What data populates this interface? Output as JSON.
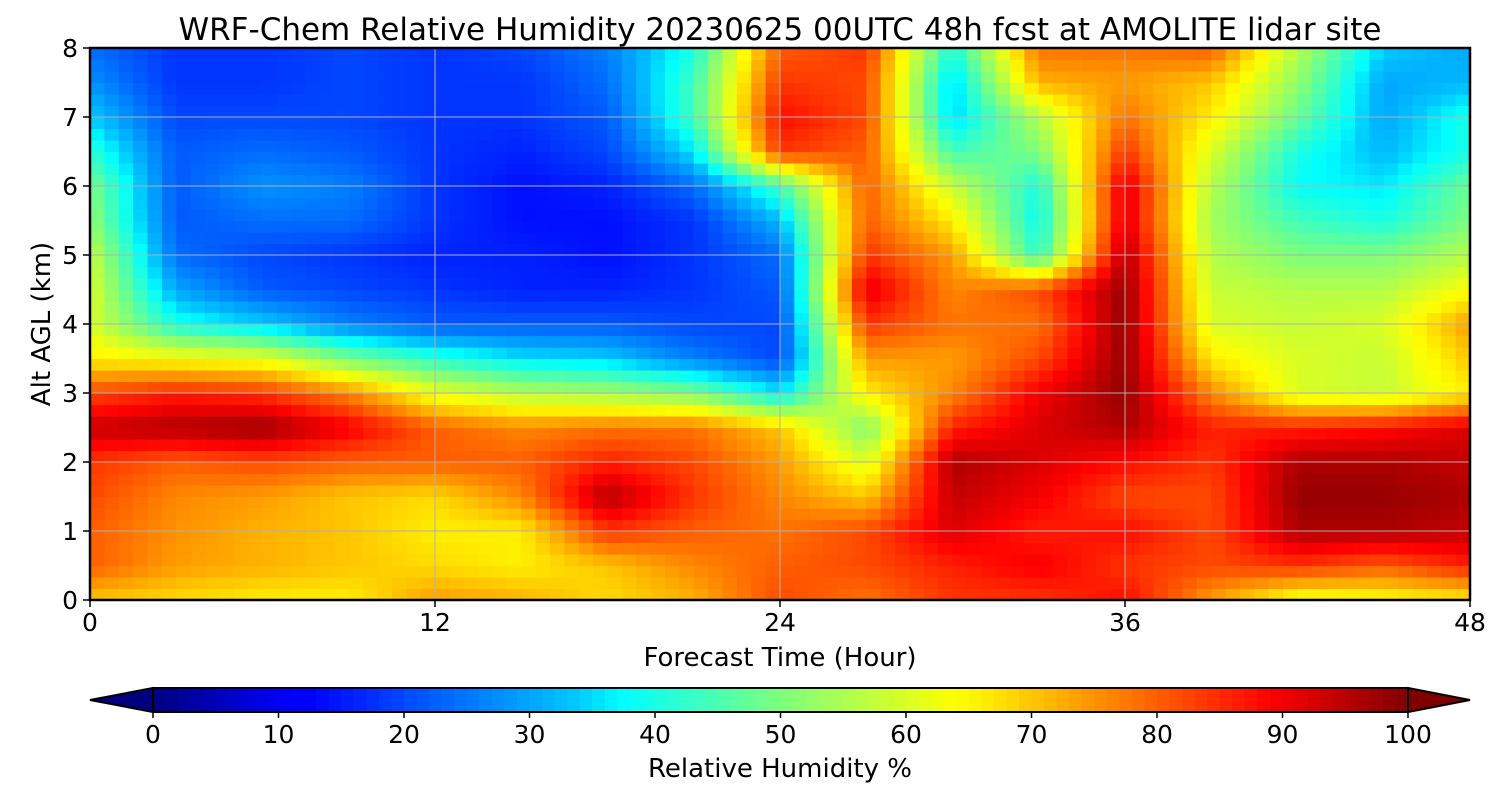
{
  "chart_data": {
    "type": "heatmap",
    "title": "WRF-Chem Relative Humidity 20230625 00UTC 48h fcst at AMOLITE lidar site",
    "xlabel": "Forecast Time (Hour)",
    "ylabel": "Alt AGL (km)",
    "xlim": [
      0,
      48
    ],
    "ylim": [
      0,
      8
    ],
    "xticks": [
      0,
      12,
      24,
      36,
      48
    ],
    "yticks": [
      0,
      1,
      2,
      3,
      4,
      5,
      6,
      7,
      8
    ],
    "grid": true,
    "colormap": "jet",
    "colorbar": {
      "label": "Relative Humidity %",
      "range": [
        0,
        100
      ],
      "ticks": [
        0,
        10,
        20,
        30,
        40,
        50,
        60,
        70,
        80,
        90,
        100
      ],
      "extend": "both",
      "orientation": "horizontal",
      "placement": "bottom"
    },
    "x": [
      0,
      3,
      6,
      9,
      12,
      15,
      18,
      21,
      24,
      27,
      30,
      33,
      36,
      39,
      42,
      45,
      48
    ],
    "y": [
      0,
      0.5,
      1,
      1.5,
      2,
      2.5,
      3,
      3.5,
      4,
      4.5,
      5,
      5.5,
      6,
      6.5,
      7,
      7.5,
      8
    ],
    "z": [
      [
        70,
        68,
        66,
        66,
        74,
        72,
        68,
        72,
        82,
        78,
        84,
        84,
        88,
        74,
        62,
        64,
        66
      ],
      [
        80,
        74,
        72,
        70,
        68,
        66,
        70,
        76,
        80,
        82,
        86,
        90,
        84,
        82,
        84,
        80,
        86
      ],
      [
        80,
        75,
        72,
        70,
        66,
        66,
        84,
        80,
        78,
        82,
        92,
        86,
        88,
        82,
        96,
        96,
        94
      ],
      [
        82,
        76,
        74,
        70,
        68,
        76,
        96,
        84,
        76,
        70,
        94,
        90,
        82,
        82,
        98,
        98,
        96
      ],
      [
        84,
        80,
        82,
        80,
        80,
        80,
        86,
        82,
        74,
        60,
        96,
        92,
        88,
        84,
        96,
        96,
        94
      ],
      [
        94,
        96,
        98,
        90,
        80,
        76,
        78,
        78,
        70,
        50,
        86,
        92,
        96,
        86,
        86,
        88,
        92
      ],
      [
        82,
        86,
        84,
        76,
        62,
        56,
        54,
        50,
        36,
        66,
        76,
        90,
        98,
        76,
        60,
        58,
        66
      ],
      [
        66,
        64,
        62,
        50,
        42,
        36,
        34,
        26,
        20,
        74,
        74,
        82,
        98,
        66,
        60,
        58,
        70
      ],
      [
        60,
        40,
        34,
        26,
        22,
        22,
        22,
        20,
        20,
        84,
        78,
        78,
        98,
        60,
        58,
        60,
        74
      ],
      [
        60,
        30,
        22,
        20,
        18,
        16,
        16,
        18,
        22,
        92,
        76,
        82,
        98,
        58,
        56,
        56,
        64
      ],
      [
        58,
        24,
        20,
        18,
        16,
        16,
        14,
        18,
        24,
        84,
        74,
        42,
        96,
        56,
        50,
        50,
        56
      ],
      [
        52,
        22,
        24,
        24,
        18,
        14,
        14,
        18,
        32,
        80,
        66,
        38,
        92,
        54,
        44,
        40,
        50
      ],
      [
        50,
        22,
        28,
        26,
        18,
        14,
        16,
        24,
        44,
        80,
        58,
        40,
        92,
        56,
        38,
        36,
        48
      ],
      [
        42,
        22,
        24,
        22,
        18,
        16,
        20,
        36,
        84,
        80,
        44,
        50,
        84,
        60,
        40,
        32,
        40
      ],
      [
        34,
        20,
        20,
        20,
        18,
        18,
        22,
        44,
        88,
        82,
        34,
        56,
        78,
        66,
        48,
        30,
        40
      ],
      [
        28,
        18,
        18,
        20,
        18,
        18,
        24,
        44,
        84,
        82,
        34,
        72,
        74,
        70,
        52,
        30,
        32
      ],
      [
        24,
        18,
        18,
        20,
        18,
        20,
        26,
        40,
        80,
        84,
        40,
        78,
        78,
        80,
        56,
        34,
        30
      ]
    ]
  }
}
